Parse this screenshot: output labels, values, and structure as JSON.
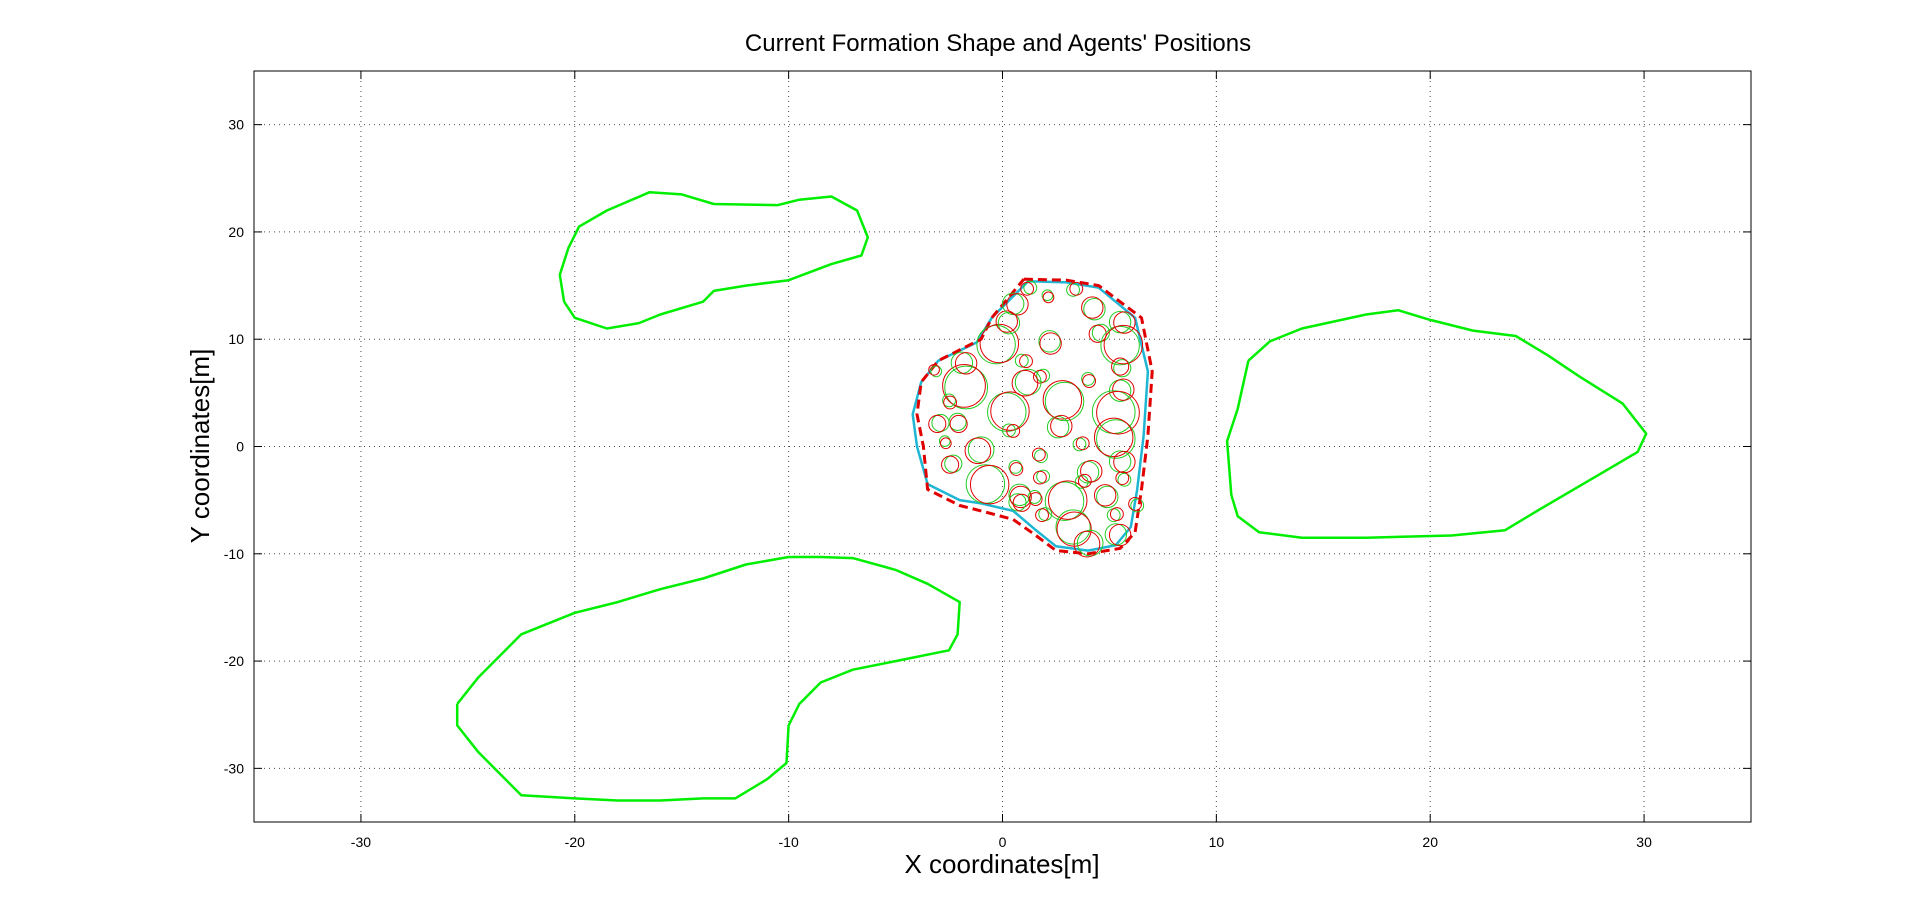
{
  "chart_data": {
    "type": "line",
    "title": "Current Formation Shape and Agents' Positions",
    "xlabel": "X coordinates[m]",
    "ylabel": "Y coordinates[m]",
    "xlim": [
      -35,
      35
    ],
    "ylim": [
      -35,
      35
    ],
    "xticks": [
      -30,
      -20,
      -10,
      0,
      10,
      20,
      30
    ],
    "yticks": [
      30,
      20,
      10,
      0,
      -10,
      -20,
      -30
    ],
    "grid": true,
    "colors": {
      "obstacle": "#00ee00",
      "formation_target": "#e00000",
      "formation_current": "#1fb6d4",
      "agent_current": "#22cc22",
      "agent_target": "#e00000"
    },
    "series": [
      {
        "role": "obstacle",
        "points": [
          [
            -20.5,
            13.5
          ],
          [
            -20.7,
            16
          ],
          [
            -20.3,
            18.5
          ],
          [
            -19.8,
            20.5
          ],
          [
            -18.5,
            22
          ],
          [
            -16.5,
            23.7
          ],
          [
            -15,
            23.5
          ],
          [
            -13.5,
            22.6
          ],
          [
            -10.5,
            22.5
          ],
          [
            -9.5,
            23
          ],
          [
            -8,
            23.3
          ],
          [
            -6.8,
            22
          ],
          [
            -6.3,
            19.5
          ],
          [
            -6.6,
            17.8
          ],
          [
            -8,
            17
          ],
          [
            -10,
            15.5
          ],
          [
            -12,
            15
          ],
          [
            -13.5,
            14.5
          ],
          [
            -14,
            13.5
          ],
          [
            -16,
            12.3
          ],
          [
            -17,
            11.5
          ],
          [
            -18.5,
            11
          ],
          [
            -20,
            12
          ],
          [
            -20.5,
            13.5
          ]
        ]
      },
      {
        "role": "obstacle",
        "points": [
          [
            11.5,
            8
          ],
          [
            12.5,
            9.8
          ],
          [
            14,
            11
          ],
          [
            17,
            12.3
          ],
          [
            18.5,
            12.7
          ],
          [
            20,
            11.8
          ],
          [
            22,
            10.8
          ],
          [
            24,
            10.3
          ],
          [
            25.5,
            8.5
          ],
          [
            27,
            6.5
          ],
          [
            29,
            4
          ],
          [
            30.1,
            1.2
          ],
          [
            29.7,
            -0.5
          ],
          [
            28,
            -2.5
          ],
          [
            25,
            -6
          ],
          [
            23.5,
            -7.8
          ],
          [
            21,
            -8.3
          ],
          [
            17,
            -8.5
          ],
          [
            14,
            -8.5
          ],
          [
            12,
            -8
          ],
          [
            11,
            -6.5
          ],
          [
            10.7,
            -4.5
          ],
          [
            10.6,
            -2
          ],
          [
            10.5,
            0.5
          ],
          [
            11,
            3.5
          ],
          [
            11.5,
            8
          ]
        ]
      },
      {
        "role": "obstacle",
        "points": [
          [
            -25.5,
            -24
          ],
          [
            -24.5,
            -21.5
          ],
          [
            -22.5,
            -17.5
          ],
          [
            -20,
            -15.5
          ],
          [
            -18,
            -14.5
          ],
          [
            -16,
            -13.3
          ],
          [
            -14,
            -12.3
          ],
          [
            -12,
            -11
          ],
          [
            -10,
            -10.3
          ],
          [
            -8.5,
            -10.3
          ],
          [
            -7,
            -10.4
          ],
          [
            -5,
            -11.5
          ],
          [
            -3.5,
            -12.8
          ],
          [
            -2,
            -14.5
          ],
          [
            -2.1,
            -17.5
          ],
          [
            -2.5,
            -19
          ],
          [
            -5,
            -20
          ],
          [
            -7,
            -20.8
          ],
          [
            -8.5,
            -22
          ],
          [
            -9.5,
            -24
          ],
          [
            -10,
            -26
          ],
          [
            -10.1,
            -29.5
          ],
          [
            -11,
            -31
          ],
          [
            -12.5,
            -32.8
          ],
          [
            -14,
            -32.8
          ],
          [
            -16,
            -33
          ],
          [
            -18,
            -33
          ],
          [
            -20,
            -32.8
          ],
          [
            -22.5,
            -32.5
          ],
          [
            -23.5,
            -30.5
          ],
          [
            -24.5,
            -28.5
          ],
          [
            -25.5,
            -26
          ],
          [
            -25.5,
            -24
          ]
        ]
      },
      {
        "role": "formation_target",
        "points": [
          [
            1,
            15.6
          ],
          [
            3,
            15.5
          ],
          [
            4.5,
            15
          ],
          [
            6.5,
            12
          ],
          [
            7,
            7
          ],
          [
            6.8,
            1
          ],
          [
            6.5,
            -4
          ],
          [
            6.2,
            -8
          ],
          [
            5.5,
            -9.5
          ],
          [
            4,
            -10
          ],
          [
            2.5,
            -9.7
          ],
          [
            1.5,
            -8.2
          ],
          [
            0.5,
            -6.8
          ],
          [
            -1,
            -6
          ],
          [
            -2,
            -5.5
          ],
          [
            -3.5,
            -4
          ],
          [
            -3.7,
            0
          ],
          [
            -4,
            3
          ],
          [
            -3.8,
            6
          ],
          [
            -3,
            8
          ],
          [
            -1,
            10
          ],
          [
            -0.5,
            12
          ],
          [
            1,
            15.6
          ]
        ]
      },
      {
        "role": "formation_current",
        "points": [
          [
            1.2,
            15.4
          ],
          [
            3,
            15.3
          ],
          [
            4.5,
            14.8
          ],
          [
            6.2,
            12
          ],
          [
            6.8,
            7
          ],
          [
            6.6,
            1
          ],
          [
            6.3,
            -4
          ],
          [
            6,
            -7.5
          ],
          [
            5.3,
            -9.2
          ],
          [
            4,
            -9.7
          ],
          [
            2.5,
            -9.3
          ],
          [
            1.5,
            -7.7
          ],
          [
            0.5,
            -6
          ],
          [
            -1,
            -5.3
          ],
          [
            -2,
            -5
          ],
          [
            -3.5,
            -3.5
          ],
          [
            -4,
            0
          ],
          [
            -4.2,
            3
          ],
          [
            -3.8,
            6
          ],
          [
            -3,
            8
          ],
          [
            -1.2,
            9.7
          ],
          [
            -0.5,
            12
          ],
          [
            1.2,
            15.4
          ]
        ]
      }
    ],
    "agents": [
      {
        "x": -0.3,
        "y": 9.5,
        "r": 0.9
      },
      {
        "x": 0.3,
        "y": 11.5,
        "r": 0.5
      },
      {
        "x": 0.5,
        "y": 13.3,
        "r": 0.5
      },
      {
        "x": 1.3,
        "y": 14.8,
        "r": 0.3
      },
      {
        "x": 2.1,
        "y": 14.1,
        "r": 0.25
      },
      {
        "x": 3.3,
        "y": 14.6,
        "r": 0.3
      },
      {
        "x": 4.3,
        "y": 12.8,
        "r": 0.5
      },
      {
        "x": 5.5,
        "y": 11.6,
        "r": 0.5
      },
      {
        "x": 4.6,
        "y": 10.6,
        "r": 0.4
      },
      {
        "x": 2.2,
        "y": 9.8,
        "r": 0.5
      },
      {
        "x": 5.5,
        "y": 9.4,
        "r": 0.9
      },
      {
        "x": 5.6,
        "y": 7.3,
        "r": 0.4
      },
      {
        "x": 0.9,
        "y": 8,
        "r": 0.3
      },
      {
        "x": 1.9,
        "y": 6.6,
        "r": 0.3
      },
      {
        "x": 4,
        "y": 6.3,
        "r": 0.3
      },
      {
        "x": 5.5,
        "y": 5.2,
        "r": 0.5
      },
      {
        "x": -1.7,
        "y": 5.5,
        "r": 1
      },
      {
        "x": -1.9,
        "y": 7.8,
        "r": 0.5
      },
      {
        "x": 1.2,
        "y": 6,
        "r": 0.6
      },
      {
        "x": -2.5,
        "y": 4.3,
        "r": 0.3
      },
      {
        "x": 0.2,
        "y": 3.2,
        "r": 0.9
      },
      {
        "x": 2.9,
        "y": 4.2,
        "r": 0.9
      },
      {
        "x": 5.2,
        "y": 3.2,
        "r": 1
      },
      {
        "x": -2.9,
        "y": 2.2,
        "r": 0.4
      },
      {
        "x": -2.1,
        "y": 2.3,
        "r": 0.4
      },
      {
        "x": 2.6,
        "y": 1.8,
        "r": 0.5
      },
      {
        "x": 5.3,
        "y": 0.7,
        "r": 0.9
      },
      {
        "x": 0.3,
        "y": 1.5,
        "r": 0.3
      },
      {
        "x": -1,
        "y": -0.3,
        "r": 0.6
      },
      {
        "x": -2.7,
        "y": 0.5,
        "r": 0.25
      },
      {
        "x": 3.6,
        "y": 0.2,
        "r": 0.3
      },
      {
        "x": 1.8,
        "y": -0.9,
        "r": 0.3
      },
      {
        "x": 5.5,
        "y": -1.4,
        "r": 0.5
      },
      {
        "x": -2.3,
        "y": -1.6,
        "r": 0.4
      },
      {
        "x": 0.6,
        "y": -1.9,
        "r": 0.3
      },
      {
        "x": 4,
        "y": -2.4,
        "r": 0.5
      },
      {
        "x": 5.7,
        "y": -3.1,
        "r": 0.3
      },
      {
        "x": -0.8,
        "y": -3.5,
        "r": 0.9
      },
      {
        "x": 1.9,
        "y": -2.8,
        "r": 0.3
      },
      {
        "x": 0.8,
        "y": -4.5,
        "r": 0.5
      },
      {
        "x": 2.9,
        "y": -5.1,
        "r": 0.9
      },
      {
        "x": 4.9,
        "y": -4.7,
        "r": 0.5
      },
      {
        "x": 0.7,
        "y": -5.2,
        "r": 0.4
      },
      {
        "x": 2,
        "y": -6.3,
        "r": 0.3
      },
      {
        "x": 3.3,
        "y": -7.5,
        "r": 0.8
      },
      {
        "x": 5.2,
        "y": -6.4,
        "r": 0.3
      },
      {
        "x": 6.3,
        "y": -5.5,
        "r": 0.3
      },
      {
        "x": 5.3,
        "y": -8.2,
        "r": 0.5
      },
      {
        "x": 4.1,
        "y": -9,
        "r": 0.6
      },
      {
        "x": 1.5,
        "y": -4.7,
        "r": 0.3
      },
      {
        "x": 3.7,
        "y": -3.3,
        "r": 0.3
      },
      {
        "x": -3.1,
        "y": 7,
        "r": 0.25
      }
    ]
  }
}
